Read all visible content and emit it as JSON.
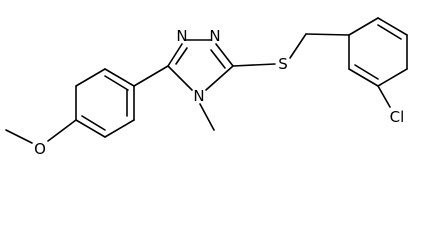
{
  "atoms": [
    {
      "label": "N"
    },
    {
      "label": "N"
    },
    {
      "label": "N"
    },
    {
      "label": "S"
    },
    {
      "label": "Cl"
    },
    {
      "label": "O"
    }
  ]
}
